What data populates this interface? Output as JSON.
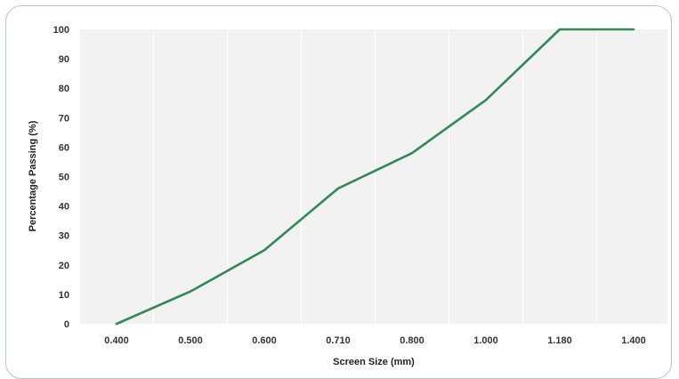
{
  "chart_data": {
    "type": "line",
    "xlabel": "Screen Size (mm)",
    "ylabel": "Percentage Passing (%)",
    "categories": [
      "0.400",
      "0.500",
      "0.600",
      "0.710",
      "0.800",
      "1.000",
      "1.180",
      "1.400"
    ],
    "series": [
      {
        "values": [
          0,
          11,
          25,
          46,
          58,
          76,
          100,
          100
        ]
      }
    ],
    "ylim": [
      0,
      100
    ],
    "yticks": [
      0,
      10,
      20,
      30,
      40,
      50,
      60,
      70,
      80,
      90,
      100
    ],
    "grid": true,
    "legend": "none",
    "colors": {
      "line": "#2e8b57",
      "plot_bg": "#f2f2f2",
      "grid": "#ffffff",
      "frame_border": "#b7c4dc"
    }
  }
}
